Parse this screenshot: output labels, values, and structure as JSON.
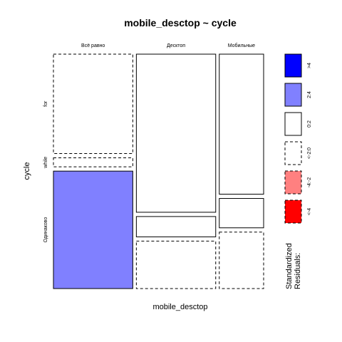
{
  "chart_data": {
    "type": "mosaic",
    "title": "mobile_desctop ~ cycle",
    "xlabel": "mobile_desctop",
    "ylabel": "cycle",
    "columns": [
      "Всё равно",
      "Десктоп",
      "Мобильные"
    ],
    "rows": [
      "for",
      "while",
      "Одинаково"
    ],
    "column_shares": [
      0.34,
      0.34,
      0.19
    ],
    "cells": [
      {
        "column": "Всё равно",
        "row": "for",
        "share": 0.44,
        "residual_class": "<-2:0",
        "fill": "#ffffff",
        "dashed": true
      },
      {
        "column": "Всё равно",
        "row": "while",
        "share": 0.04,
        "residual_class": "<-2:0",
        "fill": "#ffffff",
        "dashed": true
      },
      {
        "column": "Всё равно",
        "row": "Одинаково",
        "share": 0.52,
        "residual_class": "2:4",
        "fill": "#8080ff",
        "dashed": false
      },
      {
        "column": "Десктоп",
        "row": "for",
        "share": 0.7,
        "residual_class": "0:2",
        "fill": "#ffffff",
        "dashed": false
      },
      {
        "column": "Десктоп",
        "row": "while",
        "share": 0.09,
        "residual_class": "0:2",
        "fill": "#ffffff",
        "dashed": false
      },
      {
        "column": "Десктоп",
        "row": "Одинаково",
        "share": 0.21,
        "residual_class": "<-2:0",
        "fill": "#ffffff",
        "dashed": true
      },
      {
        "column": "Мобильные",
        "row": "for",
        "share": 0.62,
        "residual_class": "0:2",
        "fill": "#ffffff",
        "dashed": false
      },
      {
        "column": "Мобильные",
        "row": "while",
        "share": 0.13,
        "residual_class": "0:2",
        "fill": "#ffffff",
        "dashed": false
      },
      {
        "column": "Мобильные",
        "row": "Одинаково",
        "share": 0.25,
        "residual_class": "<-2:0",
        "fill": "#ffffff",
        "dashed": true
      }
    ],
    "legend": {
      "title_lines": [
        "Standardized",
        "Residuals:"
      ],
      "placement": "right",
      "entries": [
        {
          "label": ">4",
          "fill": "#0000ff",
          "dashed": false
        },
        {
          "label": "2:4",
          "fill": "#8080ff",
          "dashed": false
        },
        {
          "label": "0:2",
          "fill": "#ffffff",
          "dashed": false
        },
        {
          "label": "<-2:0",
          "fill": "#ffffff",
          "dashed": true
        },
        {
          "label": "-4:-2",
          "fill": "#ff8080",
          "dashed": true
        },
        {
          "label": "<-4",
          "fill": "#ff0000",
          "dashed": true
        }
      ]
    }
  }
}
